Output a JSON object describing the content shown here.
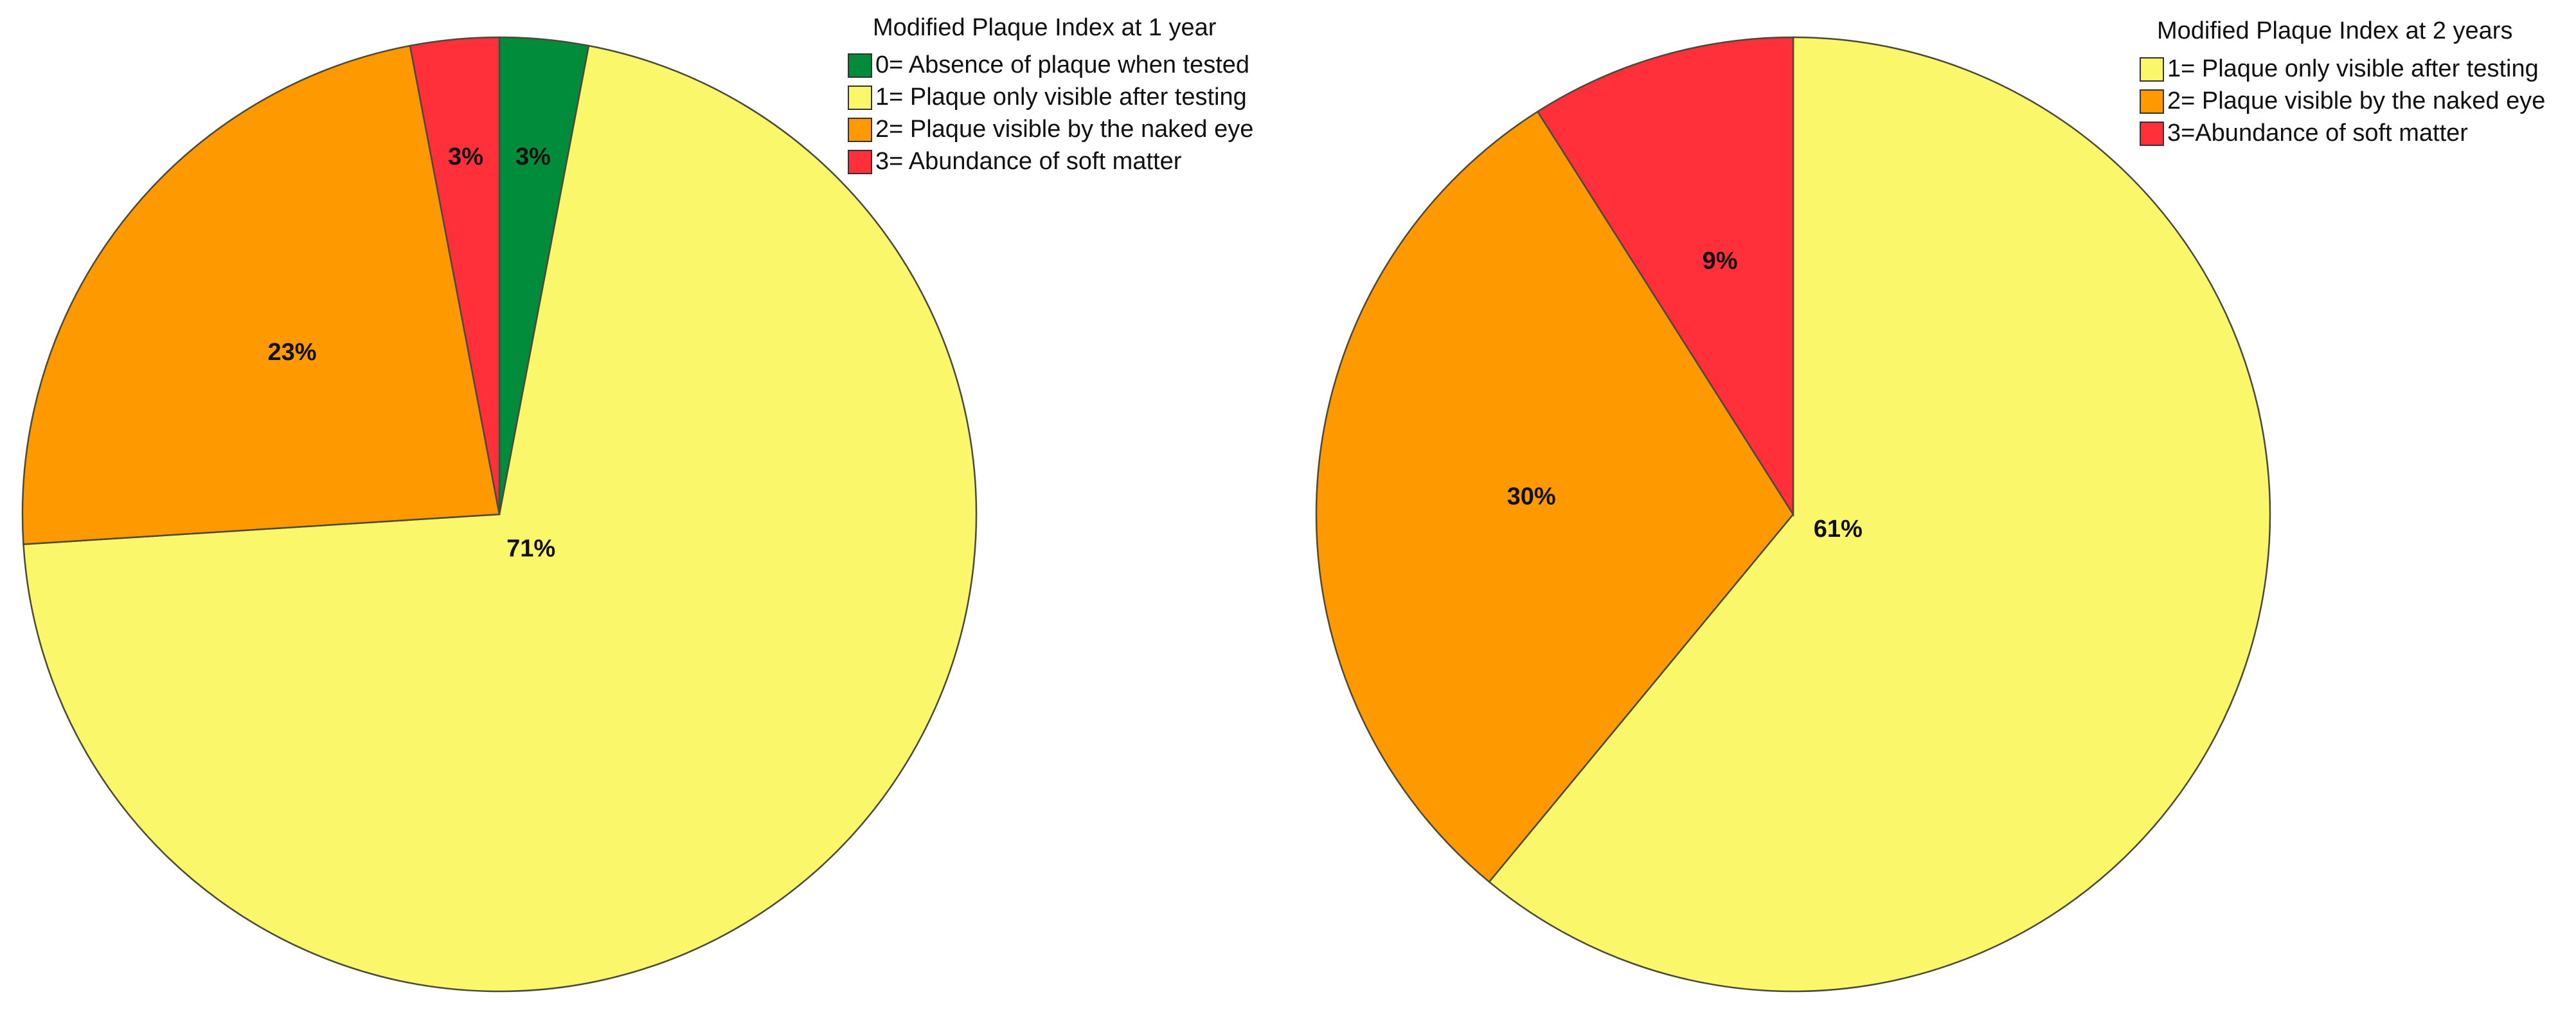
{
  "chart_data": [
    {
      "type": "pie",
      "title": "Modified Plaque Index at 1 year",
      "legend": "top-right",
      "slices": [
        {
          "label": "0= Absence of plaque when tested",
          "value": 3,
          "display": "3%",
          "color": "#008C3A"
        },
        {
          "label": "1= Plaque only visible after testing",
          "value": 71,
          "display": "71%",
          "color": "#FBF76A"
        },
        {
          "label": "2= Plaque visible by the naked eye",
          "value": 23,
          "display": "23%",
          "color": "#FF9900"
        },
        {
          "label": "3= Abundance of soft matter",
          "value": 3,
          "display": "3%",
          "color": "#FF3039"
        }
      ]
    },
    {
      "type": "pie",
      "title": "Modified Plaque Index at 2 years",
      "legend": "top-right",
      "slices": [
        {
          "label": "1= Plaque only visible after testing",
          "value": 61,
          "display": "61%",
          "color": "#FBF76A"
        },
        {
          "label": "2= Plaque visible by the naked eye",
          "value": 30,
          "display": "30%",
          "color": "#FF9900"
        },
        {
          "label": "3=Abundance of soft matter",
          "value": 9,
          "display": "9%",
          "color": "#FF3039"
        }
      ]
    }
  ]
}
